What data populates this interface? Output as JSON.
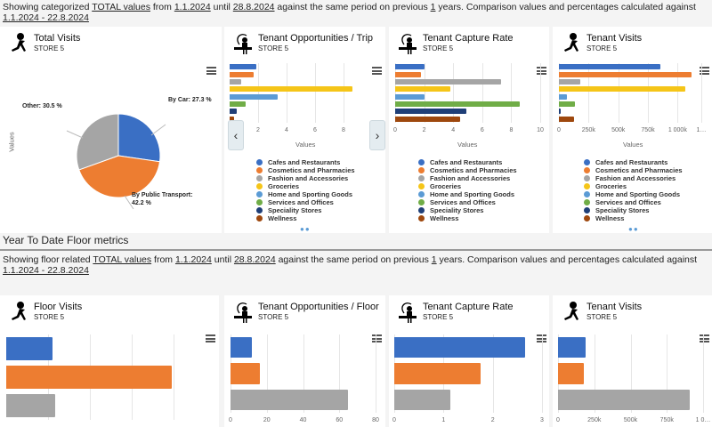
{
  "top_info": {
    "prefix": "Showing categorized ",
    "total": "TOTAL values",
    "from": " from ",
    "start": "1.1.2024",
    "until": " until ",
    "end": "28.8.2024",
    "mid": " against the same period on previous ",
    "years": "1",
    "suffix": " years. Comparison values and percentages calculated against ",
    "range": "1.1.2024 - 22.8.2024"
  },
  "section_title": "Year To Date Floor metrics",
  "floor_info": {
    "prefix": "Showing floor related ",
    "total": "TOTAL values",
    "from": " from ",
    "start": "1.1.2024",
    "until": " until ",
    "end": "28.8.2024",
    "mid": " against the same period on previous ",
    "years": "1",
    "suffix": " years. Comparison values and percentages calculated against ",
    "range": "1.1.2024 - 22.8.2024"
  },
  "panels": {
    "total_visits": {
      "title": "Total Visits",
      "subtitle": "STORE 5",
      "icon": "runner-icon"
    },
    "opp_trip": {
      "title": "Tenant Opportunities / Trip",
      "subtitle": "STORE 5",
      "icon": "shopper-icon"
    },
    "capture": {
      "title": "Tenant Capture Rate",
      "subtitle": "STORE 5",
      "icon": "shopper-icon"
    },
    "tenant_visits": {
      "title": "Tenant Visits",
      "subtitle": "STORE 5",
      "icon": "runner-icon"
    },
    "floor_visits": {
      "title": "Floor Visits",
      "subtitle": "STORE 5",
      "icon": "runner-icon"
    },
    "opp_floor": {
      "title": "Tenant Opportunities / Floor",
      "subtitle": "STORE 5",
      "icon": "shopper-icon"
    },
    "capture_floor": {
      "title": "Tenant Capture Rate",
      "subtitle": "STORE 5",
      "icon": "shopper-icon"
    },
    "tenant_visits_floor": {
      "title": "Tenant Visits",
      "subtitle": "STORE 5",
      "icon": "runner-icon"
    }
  },
  "legend": [
    {
      "label": "Cafes and Restaurants",
      "color": "#3a6fc4"
    },
    {
      "label": "Cosmetics and Pharmacies",
      "color": "#ed7d31"
    },
    {
      "label": "Fashion and Accessories",
      "color": "#a5a5a5"
    },
    {
      "label": "Groceries",
      "color": "#f5c518"
    },
    {
      "label": "Home and Sporting Goods",
      "color": "#5b9bd5"
    },
    {
      "label": "Services and Offices",
      "color": "#70ad47"
    },
    {
      "label": "Speciality Stores",
      "color": "#1f3f78"
    },
    {
      "label": "Wellness",
      "color": "#9e480e"
    }
  ],
  "carousel": {
    "prev": "‹",
    "next": "›"
  },
  "chart_data": [
    {
      "id": "total_visits",
      "type": "pie",
      "ylabel": "Values",
      "slices": [
        {
          "label": "By Car: 27.3 %",
          "value": 27.3,
          "color": "#3a6fc4"
        },
        {
          "label": "By Public Transport: 42.2 %",
          "value": 42.2,
          "color": "#ed7d31"
        },
        {
          "label": "Other: 30.5 %",
          "value": 30.5,
          "color": "#a5a5a5"
        }
      ]
    },
    {
      "id": "opp_trip",
      "type": "bar",
      "xlabel": "Values",
      "xlim": [
        0,
        9.5
      ],
      "ticks": [
        "2",
        "4",
        "6",
        "8"
      ],
      "tick_values": [
        2,
        4,
        6,
        8
      ],
      "values": [
        1.85,
        1.7,
        0.8,
        8.6,
        3.4,
        1.1,
        0.5,
        0.3
      ]
    },
    {
      "id": "capture",
      "type": "bar",
      "xlabel": "Values",
      "xlim": [
        0,
        10
      ],
      "ticks": [
        "0",
        "2",
        "4",
        "6",
        "8",
        "10"
      ],
      "tick_values": [
        0,
        2,
        4,
        6,
        8,
        10
      ],
      "values": [
        2.0,
        1.8,
        7.3,
        3.8,
        2.0,
        8.6,
        4.9,
        4.5
      ]
    },
    {
      "id": "tenant_visits",
      "type": "bar",
      "xlabel": "Values",
      "xlim": [
        0,
        1200000
      ],
      "ticks": [
        "0",
        "250k",
        "500k",
        "750k",
        "1 000k",
        "1…"
      ],
      "tick_values": [
        0,
        250000,
        500000,
        750000,
        1000000,
        1200000
      ],
      "values": [
        855000,
        1115000,
        180000,
        1065000,
        65000,
        135000,
        8000,
        125000
      ]
    },
    {
      "id": "floor_visits",
      "type": "bar",
      "xlabel": "",
      "xlim": [
        0,
        4
      ],
      "ticks": [],
      "tick_values": [
        1,
        2,
        3,
        4
      ],
      "values": [
        1.1,
        3.95,
        1.17
      ],
      "colors": [
        "#3a6fc4",
        "#ed7d31",
        "#a5a5a5"
      ]
    },
    {
      "id": "opp_floor",
      "type": "bar",
      "xlabel": "",
      "xlim": [
        0,
        80
      ],
      "ticks": [
        "0",
        "20",
        "40",
        "60",
        "80"
      ],
      "tick_values": [
        0,
        20,
        40,
        60,
        80
      ],
      "values": [
        12,
        16,
        65
      ],
      "colors": [
        "#3a6fc4",
        "#ed7d31",
        "#a5a5a5"
      ]
    },
    {
      "id": "capture_floor",
      "type": "bar",
      "xlabel": "",
      "xlim": [
        0,
        3
      ],
      "ticks": [
        "0",
        "1",
        "2",
        "3"
      ],
      "tick_values": [
        0,
        1,
        2,
        3
      ],
      "values": [
        2.65,
        1.75,
        1.13
      ],
      "colors": [
        "#3a6fc4",
        "#ed7d31",
        "#a5a5a5"
      ]
    },
    {
      "id": "tenant_visits_floor",
      "type": "bar",
      "xlabel": "",
      "xlim": [
        0,
        1000000
      ],
      "ticks": [
        "0",
        "250k",
        "500k",
        "750k",
        "1 0…"
      ],
      "tick_values": [
        0,
        250000,
        500000,
        750000,
        1000000
      ],
      "values": [
        190000,
        180000,
        910000
      ],
      "colors": [
        "#3a6fc4",
        "#ed7d31",
        "#a5a5a5"
      ]
    }
  ]
}
